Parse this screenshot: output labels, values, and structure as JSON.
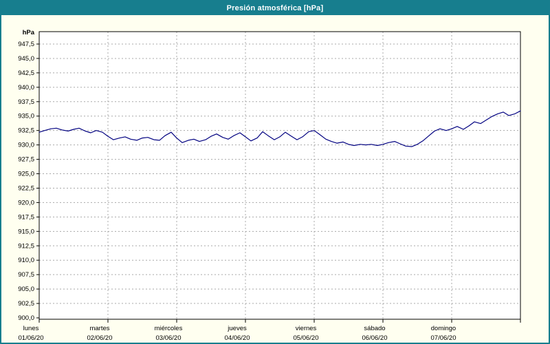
{
  "window": {
    "title": "Presión atmosférica [hPa]"
  },
  "colors": {
    "header_bg": "#177e8e",
    "window_border": "#177e8e",
    "page_bg": "#fffff0",
    "plot_bg": "#ffffff",
    "grid": "#a8a8a8",
    "axis": "#000000",
    "line": "#000080",
    "title_text": "#ffffff",
    "label_text": "#000000"
  },
  "chart_data": {
    "type": "line",
    "title": "Presión atmosférica [hPa]",
    "ylabel": "hPa",
    "xlabel": "",
    "legend": "none",
    "grid": "dashed",
    "ymin": 900.0,
    "ymax": 947.5,
    "ystep": 2.5,
    "y_tick_labels": [
      "947,5",
      "945,0",
      "942,5",
      "940,0",
      "937,5",
      "935,0",
      "932,5",
      "930,0",
      "927,5",
      "925,0",
      "922,5",
      "920,0",
      "917,5",
      "915,0",
      "912,5",
      "910,0",
      "907,5",
      "905,0",
      "902,5",
      "900,0"
    ],
    "x_days": [
      {
        "name": "lunes",
        "date": "01/06/20"
      },
      {
        "name": "martes",
        "date": "02/06/20"
      },
      {
        "name": "miércoles",
        "date": "03/06/20"
      },
      {
        "name": "jueves",
        "date": "04/06/20"
      },
      {
        "name": "viernes",
        "date": "05/06/20"
      },
      {
        "name": "sábado",
        "date": "06/06/20"
      },
      {
        "name": "domingo",
        "date": "07/06/20"
      }
    ],
    "x_range_days": [
      0,
      7
    ],
    "series": [
      {
        "name": "Presión atmosférica",
        "unit": "hPa",
        "color": "#000080",
        "points": [
          [
            0.0,
            932.2
          ],
          [
            0.08,
            932.5
          ],
          [
            0.17,
            932.8
          ],
          [
            0.25,
            932.9
          ],
          [
            0.33,
            932.6
          ],
          [
            0.42,
            932.4
          ],
          [
            0.5,
            932.7
          ],
          [
            0.58,
            932.9
          ],
          [
            0.67,
            932.4
          ],
          [
            0.75,
            932.1
          ],
          [
            0.83,
            932.5
          ],
          [
            0.92,
            932.2
          ],
          [
            1.0,
            931.5
          ],
          [
            1.08,
            930.9
          ],
          [
            1.17,
            931.2
          ],
          [
            1.25,
            931.4
          ],
          [
            1.33,
            931.0
          ],
          [
            1.42,
            930.8
          ],
          [
            1.5,
            931.2
          ],
          [
            1.58,
            931.3
          ],
          [
            1.67,
            930.9
          ],
          [
            1.75,
            930.8
          ],
          [
            1.83,
            931.6
          ],
          [
            1.92,
            932.2
          ],
          [
            2.0,
            931.2
          ],
          [
            2.08,
            930.4
          ],
          [
            2.17,
            930.8
          ],
          [
            2.25,
            931.0
          ],
          [
            2.33,
            930.6
          ],
          [
            2.42,
            930.9
          ],
          [
            2.5,
            931.5
          ],
          [
            2.58,
            931.9
          ],
          [
            2.67,
            931.3
          ],
          [
            2.75,
            931.0
          ],
          [
            2.83,
            931.6
          ],
          [
            2.92,
            932.1
          ],
          [
            3.0,
            931.4
          ],
          [
            3.08,
            930.7
          ],
          [
            3.17,
            931.2
          ],
          [
            3.25,
            932.3
          ],
          [
            3.33,
            931.6
          ],
          [
            3.42,
            930.9
          ],
          [
            3.5,
            931.4
          ],
          [
            3.58,
            932.2
          ],
          [
            3.67,
            931.5
          ],
          [
            3.75,
            930.9
          ],
          [
            3.83,
            931.4
          ],
          [
            3.92,
            932.3
          ],
          [
            4.0,
            932.5
          ],
          [
            4.08,
            931.8
          ],
          [
            4.17,
            931.0
          ],
          [
            4.25,
            930.6
          ],
          [
            4.33,
            930.3
          ],
          [
            4.42,
            930.5
          ],
          [
            4.5,
            930.1
          ],
          [
            4.58,
            929.9
          ],
          [
            4.67,
            930.1
          ],
          [
            4.75,
            930.0
          ],
          [
            4.83,
            930.1
          ],
          [
            4.92,
            929.9
          ],
          [
            5.0,
            930.1
          ],
          [
            5.08,
            930.4
          ],
          [
            5.17,
            930.6
          ],
          [
            5.25,
            930.2
          ],
          [
            5.33,
            929.8
          ],
          [
            5.42,
            929.7
          ],
          [
            5.5,
            930.1
          ],
          [
            5.58,
            930.7
          ],
          [
            5.67,
            931.6
          ],
          [
            5.75,
            932.4
          ],
          [
            5.83,
            932.8
          ],
          [
            5.92,
            932.5
          ],
          [
            6.0,
            932.8
          ],
          [
            6.08,
            933.2
          ],
          [
            6.17,
            932.7
          ],
          [
            6.25,
            933.3
          ],
          [
            6.33,
            934.0
          ],
          [
            6.42,
            933.7
          ],
          [
            6.5,
            934.3
          ],
          [
            6.58,
            934.9
          ],
          [
            6.67,
            935.4
          ],
          [
            6.75,
            935.7
          ],
          [
            6.83,
            935.1
          ],
          [
            6.92,
            935.4
          ],
          [
            7.0,
            935.9
          ]
        ]
      }
    ]
  }
}
